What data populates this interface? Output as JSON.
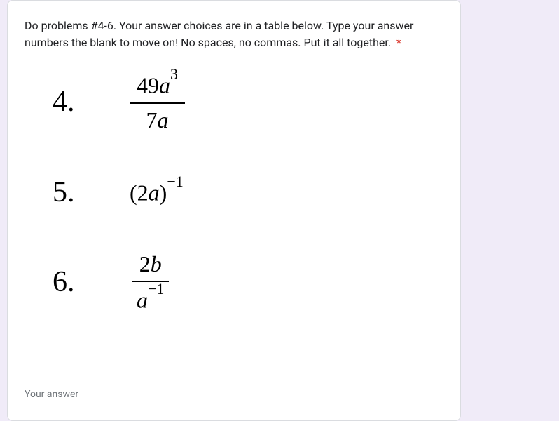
{
  "question": {
    "text": "Do problems #4-6. Your answer choices are in a table below. Type your answer numbers the blank to move on! No spaces, no commas. Put it all together.",
    "required_marker": "*"
  },
  "problems": [
    {
      "number": "4.",
      "type": "fraction",
      "numerator": "49a",
      "numerator_sup": "3",
      "denominator": "7a"
    },
    {
      "number": "5.",
      "type": "expression",
      "base": "(2a)",
      "exponent": "−1"
    },
    {
      "number": "6.",
      "type": "fraction",
      "numerator": "2b",
      "denominator": "a",
      "denominator_sup": "−1"
    }
  ],
  "input": {
    "placeholder": "Your answer"
  },
  "colors": {
    "background": "#f0ebf8",
    "card_bg": "#ffffff",
    "border": "#dadce0",
    "text": "#202124",
    "required": "#d93025",
    "placeholder": "#70757a",
    "math": "#000000"
  }
}
